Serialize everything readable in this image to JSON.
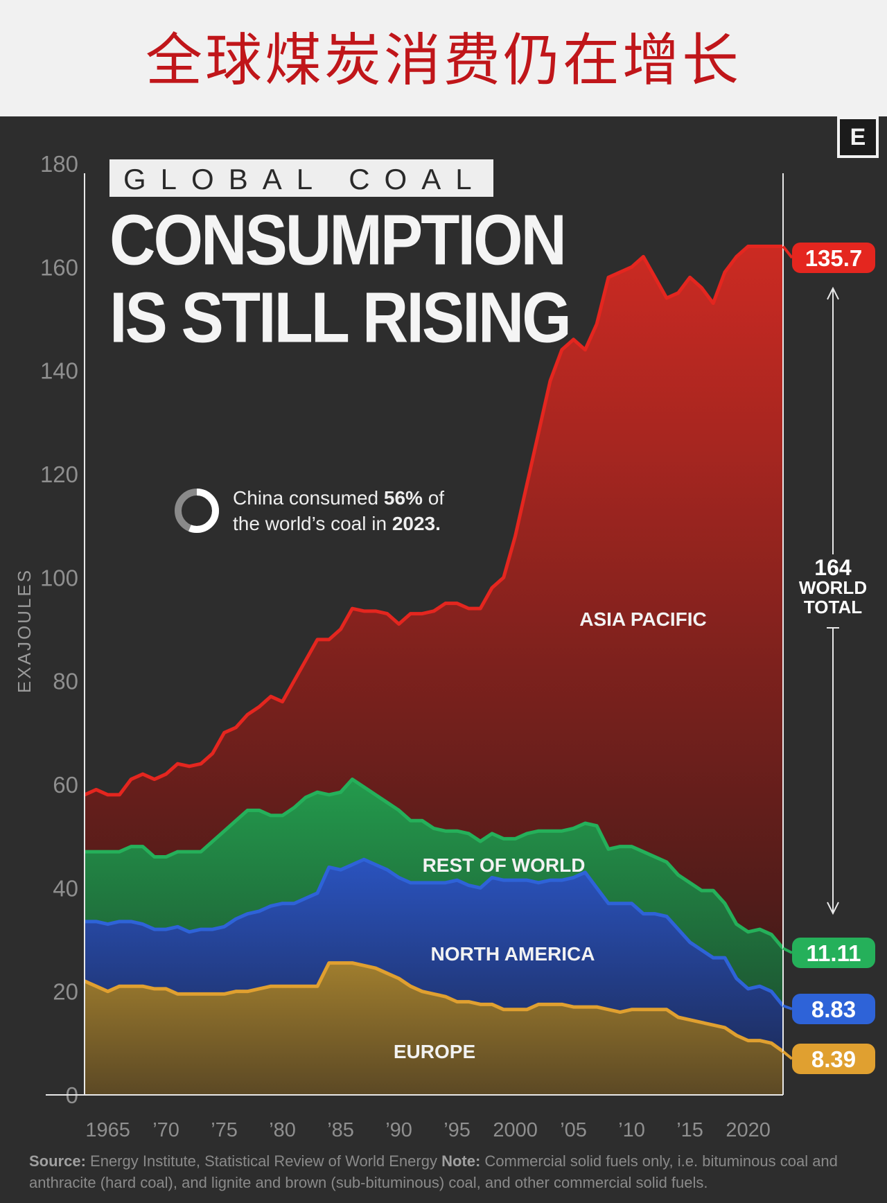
{
  "cn_title": "全球煤炭消费仍在增长",
  "badge": "E",
  "title": {
    "line1": "GLOBAL COAL",
    "line2": "CONSUMPTION",
    "line3": "IS STILL RISING"
  },
  "annotation": {
    "pre": "China consumed ",
    "pct": "56%",
    "mid": " of",
    "pre2": "the world’s coal in ",
    "year": "2023."
  },
  "source": {
    "label": "Source:",
    "text": " Energy Institute, Statistical Review of World Energy ",
    "note_label": "Note:",
    "note_text": " Commercial solid fuels only, i.e. bituminous coal and anthracite (hard coal), and lignite and brown (sub-bituminous) coal, and other commercial solid fuels."
  },
  "colors": {
    "asia": "#e4261f",
    "rest": "#25b05a",
    "north_america": "#2e63d8",
    "europe": "#e0a030"
  },
  "chart_data": {
    "type": "area",
    "stacked": true,
    "title": "GLOBAL COAL CONSUMPTION IS STILL RISING",
    "ylabel": "EXAJOULES",
    "xlabel": "",
    "ylim": [
      0,
      180
    ],
    "yticks": [
      0,
      20,
      40,
      60,
      80,
      100,
      120,
      140,
      160,
      180
    ],
    "xlim": [
      1965,
      2023
    ],
    "xticks": [
      {
        "v": 1965,
        "label": "1965"
      },
      {
        "v": 1970,
        "label": "’70"
      },
      {
        "v": 1975,
        "label": "’75"
      },
      {
        "v": 1980,
        "label": "’80"
      },
      {
        "v": 1985,
        "label": "’85"
      },
      {
        "v": 1990,
        "label": "’90"
      },
      {
        "v": 1995,
        "label": "’95"
      },
      {
        "v": 2000,
        "label": "2000"
      },
      {
        "v": 2005,
        "label": "’05"
      },
      {
        "v": 2010,
        "label": "’10"
      },
      {
        "v": 2015,
        "label": "’15"
      },
      {
        "v": 2020,
        "label": "2020"
      }
    ],
    "grid": false,
    "years": [
      1963,
      1964,
      1965,
      1966,
      1967,
      1968,
      1969,
      1970,
      1971,
      1972,
      1973,
      1974,
      1975,
      1976,
      1977,
      1978,
      1979,
      1980,
      1981,
      1982,
      1983,
      1984,
      1985,
      1986,
      1987,
      1988,
      1989,
      1990,
      1991,
      1992,
      1993,
      1994,
      1995,
      1996,
      1997,
      1998,
      1999,
      2000,
      2001,
      2002,
      2003,
      2004,
      2005,
      2006,
      2007,
      2008,
      2009,
      2010,
      2011,
      2012,
      2013,
      2014,
      2015,
      2016,
      2017,
      2018,
      2019,
      2020,
      2021,
      2022,
      2023
    ],
    "series": [
      {
        "name": "EUROPE",
        "color": "#e0a030",
        "end_value": 8.39,
        "cumulative": [
          22.0,
          21.0,
          20.0,
          21.0,
          21.0,
          21.0,
          20.5,
          20.5,
          19.5,
          19.5,
          19.5,
          19.5,
          19.5,
          20.0,
          20.0,
          20.5,
          21.0,
          21.0,
          21.0,
          21.0,
          21.0,
          25.5,
          25.5,
          25.5,
          25.0,
          24.5,
          23.5,
          22.5,
          21.0,
          20.0,
          19.5,
          19.0,
          18.0,
          18.0,
          17.5,
          17.5,
          16.5,
          16.5,
          16.5,
          17.5,
          17.5,
          17.5,
          17.0,
          17.0,
          17.0,
          16.5,
          16.0,
          16.5,
          16.5,
          16.5,
          16.5,
          15.0,
          14.5,
          14.0,
          13.5,
          13.0,
          11.5,
          10.5,
          10.5,
          10.0,
          8.39
        ]
      },
      {
        "name": "NORTH AMERICA",
        "color": "#2e63d8",
        "end_value": 8.83,
        "cumulative": [
          33.5,
          33.5,
          33.0,
          33.5,
          33.5,
          33.0,
          32.0,
          32.0,
          32.5,
          31.5,
          32.0,
          32.0,
          32.5,
          34.0,
          35.0,
          35.5,
          36.5,
          37.0,
          37.0,
          38.0,
          39.0,
          44.0,
          43.5,
          44.5,
          45.5,
          44.5,
          43.5,
          42.0,
          41.0,
          41.0,
          41.0,
          41.0,
          41.5,
          40.5,
          40.0,
          42.0,
          41.5,
          41.5,
          41.5,
          41.0,
          41.5,
          41.5,
          42.0,
          43.0,
          40.0,
          37.0,
          37.0,
          37.0,
          35.0,
          35.0,
          34.5,
          32.0,
          29.5,
          28.0,
          26.5,
          26.5,
          22.5,
          20.5,
          21.0,
          20.0,
          17.22
        ]
      },
      {
        "name": "REST OF WORLD",
        "color": "#25b05a",
        "end_value": 11.11,
        "cumulative": [
          47.0,
          47.0,
          47.0,
          47.0,
          48.0,
          48.0,
          46.0,
          46.0,
          47.0,
          47.0,
          47.0,
          49.0,
          51.0,
          53.0,
          55.0,
          55.0,
          54.0,
          54.0,
          55.5,
          57.5,
          58.5,
          58.0,
          58.5,
          61.0,
          59.5,
          58.0,
          56.5,
          55.0,
          53.0,
          53.0,
          51.5,
          51.0,
          51.0,
          50.5,
          49.0,
          50.5,
          49.5,
          49.5,
          50.5,
          51.0,
          51.0,
          51.0,
          51.5,
          52.5,
          52.0,
          47.5,
          48.0,
          48.0,
          47.0,
          46.0,
          45.0,
          42.5,
          41.0,
          39.5,
          39.5,
          37.0,
          33.0,
          31.5,
          32.0,
          31.0,
          28.33
        ]
      },
      {
        "name": "ASIA PACIFIC",
        "color": "#e4261f",
        "end_value": 135.7,
        "cumulative": [
          58.0,
          59.0,
          58.0,
          58.0,
          61.0,
          62.0,
          61.0,
          62.0,
          64.0,
          63.5,
          64.0,
          66.0,
          70.0,
          71.0,
          73.5,
          75.0,
          77.0,
          76.0,
          80.0,
          84.0,
          88.0,
          88.0,
          90.0,
          94.0,
          93.5,
          93.5,
          93.0,
          91.0,
          93.0,
          93.0,
          93.5,
          95.0,
          95.0,
          94.0,
          94.0,
          98.0,
          100.0,
          108.0,
          118.0,
          128.0,
          138.0,
          144.0,
          146.0,
          144.0,
          149.0,
          158.0,
          159.0,
          160.0,
          162.0,
          158.0,
          154.0,
          155.0,
          158.0,
          156.0,
          153.0,
          159.0,
          162.0,
          164.0,
          164.0,
          164.0,
          164.0
        ]
      }
    ],
    "series_labels": [
      "ASIA PACIFIC",
      "REST OF WORLD",
      "NORTH AMERICA",
      "EUROPE"
    ],
    "end_labels": [
      {
        "series": "ASIA PACIFIC",
        "value": "135.7"
      },
      {
        "series": "REST OF WORLD",
        "value": "11.11"
      },
      {
        "series": "NORTH AMERICA",
        "value": "8.83"
      },
      {
        "series": "EUROPE",
        "value": "8.39"
      }
    ],
    "total": {
      "value": "164",
      "label1": "WORLD",
      "label2": "TOTAL"
    }
  }
}
